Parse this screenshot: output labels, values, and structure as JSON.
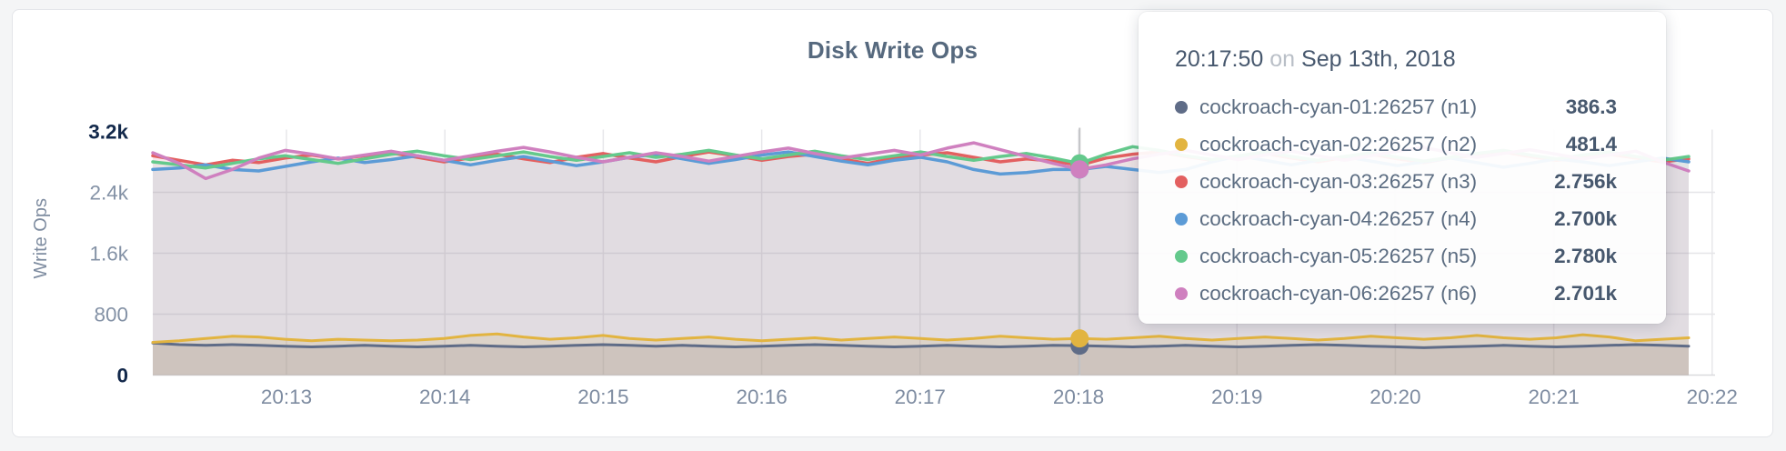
{
  "chart": {
    "title": "Disk Write Ops",
    "ylabel": "Write Ops"
  },
  "tooltip": {
    "time": "20:17:50",
    "connector": "on",
    "date": "Sep 13th, 2018",
    "rows": [
      {
        "label": "cockroach-cyan-01:26257 (n1)",
        "value": "386.3",
        "color": "#5f6c87"
      },
      {
        "label": "cockroach-cyan-02:26257 (n2)",
        "value": "481.4",
        "color": "#e2b440"
      },
      {
        "label": "cockroach-cyan-03:26257 (n3)",
        "value": "2.756k",
        "color": "#e36060"
      },
      {
        "label": "cockroach-cyan-04:26257 (n4)",
        "value": "2.700k",
        "color": "#5c9bd6"
      },
      {
        "label": "cockroach-cyan-05:26257 (n5)",
        "value": "2.780k",
        "color": "#64c98c"
      },
      {
        "label": "cockroach-cyan-06:26257 (n6)",
        "value": "2.701k",
        "color": "#cf80bf"
      }
    ]
  },
  "chart_data": {
    "type": "line",
    "title": "Disk Write Ops",
    "xlabel": "",
    "ylabel": "Write Ops",
    "ylim": [
      0,
      3200
    ],
    "grid": true,
    "x_ticks": [
      "20:13",
      "20:14",
      "20:15",
      "20:16",
      "20:17",
      "20:18",
      "20:19",
      "20:20",
      "20:21",
      "20:22"
    ],
    "x_range": [
      "20:12:10",
      "20:21:50"
    ],
    "interval_seconds": 10,
    "y_ticks": [
      {
        "label": "3.2k",
        "value": 3200,
        "bold": true,
        "grid": false
      },
      {
        "label": "2.4k",
        "value": 2400,
        "bold": false,
        "grid": true
      },
      {
        "label": "1.6k",
        "value": 1600,
        "bold": false,
        "grid": true
      },
      {
        "label": "800",
        "value": 800,
        "bold": false,
        "grid": true
      },
      {
        "label": "0",
        "value": 0,
        "bold": true,
        "grid": false
      }
    ],
    "hover_index": 35,
    "hover_time": "20:17:50",
    "series": [
      {
        "name": "cockroach-cyan-01:26257 (n1)",
        "short": "n1",
        "color": "#5f6c87",
        "hover_value": 386.3,
        "values": [
          420,
          400,
          390,
          400,
          390,
          380,
          370,
          380,
          390,
          380,
          370,
          380,
          390,
          380,
          370,
          380,
          390,
          400,
          390,
          380,
          390,
          380,
          370,
          380,
          390,
          400,
          390,
          380,
          370,
          380,
          390,
          380,
          370,
          380,
          390,
          386.3,
          380,
          370,
          380,
          390,
          380,
          370,
          380,
          390,
          400,
          390,
          380,
          370,
          360,
          370,
          380,
          390,
          380,
          370,
          380,
          390,
          400,
          390,
          380
        ]
      },
      {
        "name": "cockroach-cyan-02:26257 (n2)",
        "short": "n2",
        "color": "#e2b440",
        "hover_value": 481.4,
        "values": [
          430,
          450,
          480,
          510,
          500,
          470,
          450,
          470,
          460,
          450,
          460,
          480,
          520,
          540,
          500,
          470,
          490,
          520,
          480,
          460,
          480,
          500,
          470,
          450,
          470,
          490,
          460,
          480,
          500,
          480,
          460,
          480,
          510,
          490,
          470,
          481.4,
          470,
          490,
          510,
          480,
          460,
          480,
          500,
          480,
          460,
          480,
          510,
          490,
          470,
          490,
          520,
          490,
          470,
          490,
          530,
          500,
          450,
          470,
          490
        ]
      },
      {
        "name": "cockroach-cyan-03:26257 (n3)",
        "short": "n3",
        "color": "#e36060",
        "hover_value": 2756,
        "values": [
          2880,
          2820,
          2760,
          2820,
          2790,
          2850,
          2890,
          2840,
          2880,
          2920,
          2860,
          2800,
          2850,
          2900,
          2840,
          2790,
          2860,
          2910,
          2850,
          2800,
          2870,
          2930,
          2880,
          2820,
          2870,
          2900,
          2840,
          2780,
          2850,
          2890,
          2920,
          2860,
          2800,
          2840,
          2810,
          2756,
          2850,
          2900,
          2930,
          2870,
          2820,
          2870,
          2910,
          2850,
          2800,
          2860,
          2900,
          2840,
          2790,
          2850,
          2890,
          2930,
          2870,
          2820,
          2860,
          2900,
          2850,
          2800,
          2840
        ]
      },
      {
        "name": "cockroach-cyan-04:26257 (n4)",
        "short": "n4",
        "color": "#5c9bd6",
        "hover_value": 2700,
        "values": [
          2700,
          2720,
          2760,
          2700,
          2680,
          2740,
          2800,
          2850,
          2790,
          2830,
          2880,
          2820,
          2760,
          2820,
          2870,
          2810,
          2750,
          2800,
          2860,
          2900,
          2840,
          2780,
          2830,
          2890,
          2930,
          2870,
          2810,
          2760,
          2820,
          2860,
          2800,
          2700,
          2640,
          2660,
          2700,
          2700,
          2740,
          2700,
          2660,
          2700,
          2800,
          2880,
          2820,
          2760,
          2820,
          2870,
          2810,
          2750,
          2800,
          2850,
          2790,
          2730,
          2780,
          2840,
          2800,
          2750,
          2800,
          2850,
          2800
        ]
      },
      {
        "name": "cockroach-cyan-05:26257 (n5)",
        "short": "n5",
        "color": "#64c98c",
        "hover_value": 2780,
        "values": [
          2800,
          2760,
          2720,
          2780,
          2840,
          2880,
          2830,
          2780,
          2840,
          2900,
          2940,
          2880,
          2830,
          2880,
          2930,
          2870,
          2820,
          2870,
          2920,
          2860,
          2900,
          2950,
          2890,
          2840,
          2890,
          2940,
          2880,
          2830,
          2880,
          2930,
          2870,
          2820,
          2870,
          2910,
          2850,
          2780,
          2900,
          3000,
          2950,
          2880,
          2830,
          2880,
          2930,
          2870,
          2820,
          2870,
          2920,
          2860,
          2810,
          2860,
          2910,
          2950,
          2890,
          2840,
          2890,
          2930,
          2870,
          2820,
          2870
        ]
      },
      {
        "name": "cockroach-cyan-06:26257 (n6)",
        "short": "n6",
        "color": "#cf80bf",
        "hover_value": 2701,
        "values": [
          2920,
          2780,
          2580,
          2700,
          2850,
          2950,
          2900,
          2840,
          2890,
          2940,
          2880,
          2820,
          2880,
          2940,
          2990,
          2930,
          2860,
          2800,
          2860,
          2920,
          2870,
          2810,
          2870,
          2930,
          2980,
          2910,
          2850,
          2900,
          2950,
          2890,
          2980,
          3050,
          2960,
          2870,
          2780,
          2701,
          2760,
          2840,
          2900,
          2950,
          2890,
          2830,
          2890,
          2940,
          2880,
          2820,
          2880,
          2940,
          2990,
          2920,
          2860,
          2910,
          2960,
          2900,
          2840,
          2890,
          2940,
          2800,
          2680
        ]
      }
    ]
  }
}
